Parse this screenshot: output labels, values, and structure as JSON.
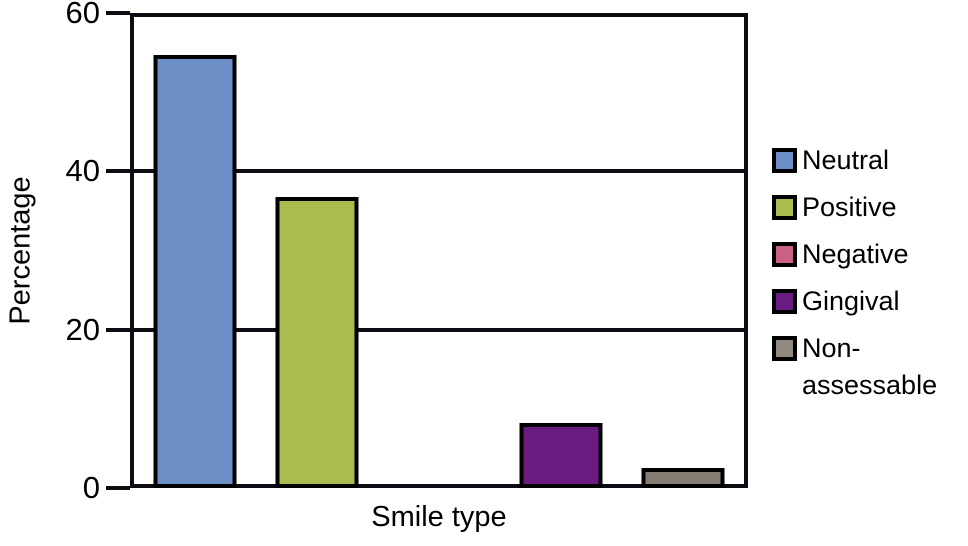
{
  "chart_data": {
    "type": "bar",
    "title": "",
    "xlabel": "Smile type",
    "ylabel": "Percentage",
    "ylim": [
      0,
      60
    ],
    "yticks": [
      {
        "label": "0",
        "value": 0
      },
      {
        "label": "20",
        "value": 20
      },
      {
        "label": "40",
        "value": 40
      },
      {
        "label": "60",
        "value": 60
      }
    ],
    "grid": "horizontal gridlines at labeled ticks, behind bars",
    "legend_position": "right",
    "categories": [
      "Neutral",
      "Positive",
      "Negative",
      "Gingival",
      "Non-assessable"
    ],
    "values": [
      54.7,
      36.8,
      0,
      8.2,
      2.5
    ],
    "colors": [
      "#6e90c8",
      "#a9bd4f",
      "#c96183",
      "#6a1b82",
      "#857d74"
    ],
    "bar_border_color": "#000000",
    "axis_color": "#0c0c12",
    "legend": [
      {
        "label": "Neutral",
        "lines": [
          "Neutral"
        ],
        "color": "#6e90c8"
      },
      {
        "label": "Positive",
        "lines": [
          "Positive"
        ],
        "color": "#a9bd4f"
      },
      {
        "label": "Negative",
        "lines": [
          "Negative"
        ],
        "color": "#c96183"
      },
      {
        "label": "Gingival",
        "lines": [
          "Gingival"
        ],
        "color": "#6a1b82"
      },
      {
        "label": "Non-assessable",
        "lines": [
          "Non-",
          "assessable"
        ],
        "color": "#928a80"
      }
    ]
  }
}
